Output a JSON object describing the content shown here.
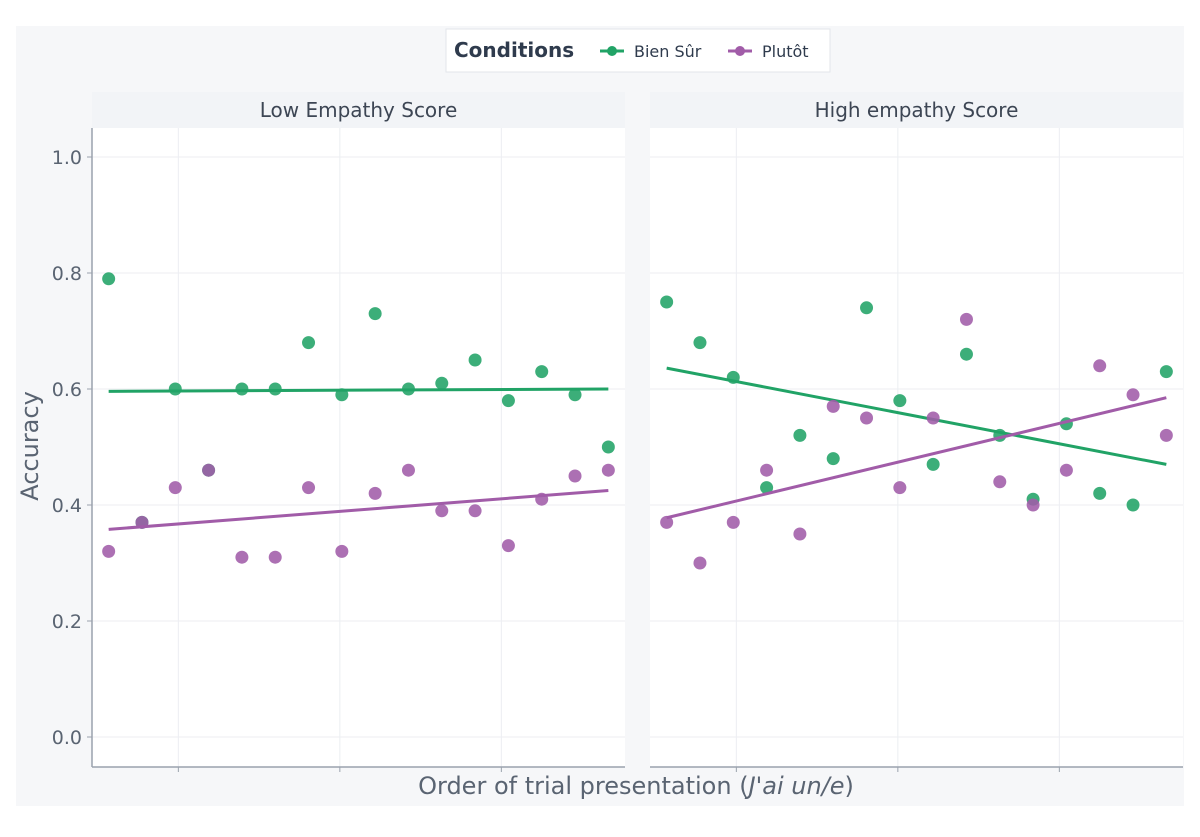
{
  "legend": {
    "title": "Conditions",
    "entries": [
      {
        "label": "Bien Sûr",
        "color": "#21a366"
      },
      {
        "label": "Plutôt",
        "color": "#a15ca8"
      }
    ]
  },
  "xlabel_prefix": "Order of trial presentation (",
  "xlabel_italic": "J'ai un/e",
  "xlabel_suffix": ")",
  "chart_data": [
    {
      "type": "scatter",
      "title": "Low Empathy Score",
      "xlabel": "Order of trial presentation (J'ai un/e)",
      "ylabel": "Accuracy",
      "ylim": [
        0,
        1.0
      ],
      "xlim": [
        0.5,
        16.5
      ],
      "yticks": [
        "0.0",
        "0.2",
        "0.4",
        "0.6",
        "0.8",
        "1.0"
      ],
      "grid": true,
      "series": [
        {
          "name": "Bien Sûr",
          "color": "#21a366",
          "x": [
            1,
            2,
            3,
            4,
            5,
            6,
            7,
            8,
            9,
            10,
            11,
            12,
            13,
            14,
            15,
            16
          ],
          "y": [
            0.79,
            0.37,
            0.6,
            0.46,
            0.6,
            0.6,
            0.68,
            0.59,
            0.73,
            0.6,
            0.61,
            0.65,
            0.58,
            0.63,
            0.59,
            0.5
          ],
          "trend": [
            0.596,
            0.6
          ]
        },
        {
          "name": "Plutôt",
          "color": "#a15ca8",
          "x": [
            1,
            2,
            3,
            4,
            5,
            6,
            7,
            8,
            9,
            10,
            11,
            12,
            13,
            14,
            15,
            16
          ],
          "y": [
            0.32,
            0.37,
            0.43,
            0.46,
            0.31,
            0.31,
            0.43,
            0.32,
            0.42,
            0.46,
            0.39,
            0.39,
            0.33,
            0.41,
            0.45,
            0.46
          ],
          "trend": [
            0.358,
            0.425
          ]
        }
      ]
    },
    {
      "type": "scatter",
      "title": "High empathy Score",
      "xlabel": "Order of trial presentation (J'ai un/e)",
      "ylabel": "Accuracy",
      "ylim": [
        0,
        1.0
      ],
      "xlim": [
        0.5,
        16.5
      ],
      "yticks": [
        "0.0",
        "0.2",
        "0.4",
        "0.6",
        "0.8",
        "1.0"
      ],
      "grid": true,
      "series": [
        {
          "name": "Bien Sûr",
          "color": "#21a366",
          "x": [
            1,
            2,
            3,
            4,
            5,
            6,
            7,
            8,
            9,
            10,
            11,
            12,
            13,
            14,
            15,
            16
          ],
          "y": [
            0.75,
            0.68,
            0.62,
            0.43,
            0.52,
            0.48,
            0.74,
            0.58,
            0.47,
            0.66,
            0.52,
            0.41,
            0.54,
            0.42,
            0.4,
            0.63
          ],
          "trend": [
            0.636,
            0.47
          ]
        },
        {
          "name": "Plutôt",
          "color": "#a15ca8",
          "x": [
            1,
            2,
            3,
            4,
            5,
            6,
            7,
            8,
            9,
            10,
            11,
            12,
            13,
            14,
            15,
            16
          ],
          "y": [
            0.37,
            0.3,
            0.37,
            0.46,
            0.35,
            0.57,
            0.55,
            0.43,
            0.55,
            0.72,
            0.44,
            0.4,
            0.46,
            0.64,
            0.59,
            0.52
          ],
          "trend": [
            0.378,
            0.585
          ]
        }
      ]
    }
  ]
}
